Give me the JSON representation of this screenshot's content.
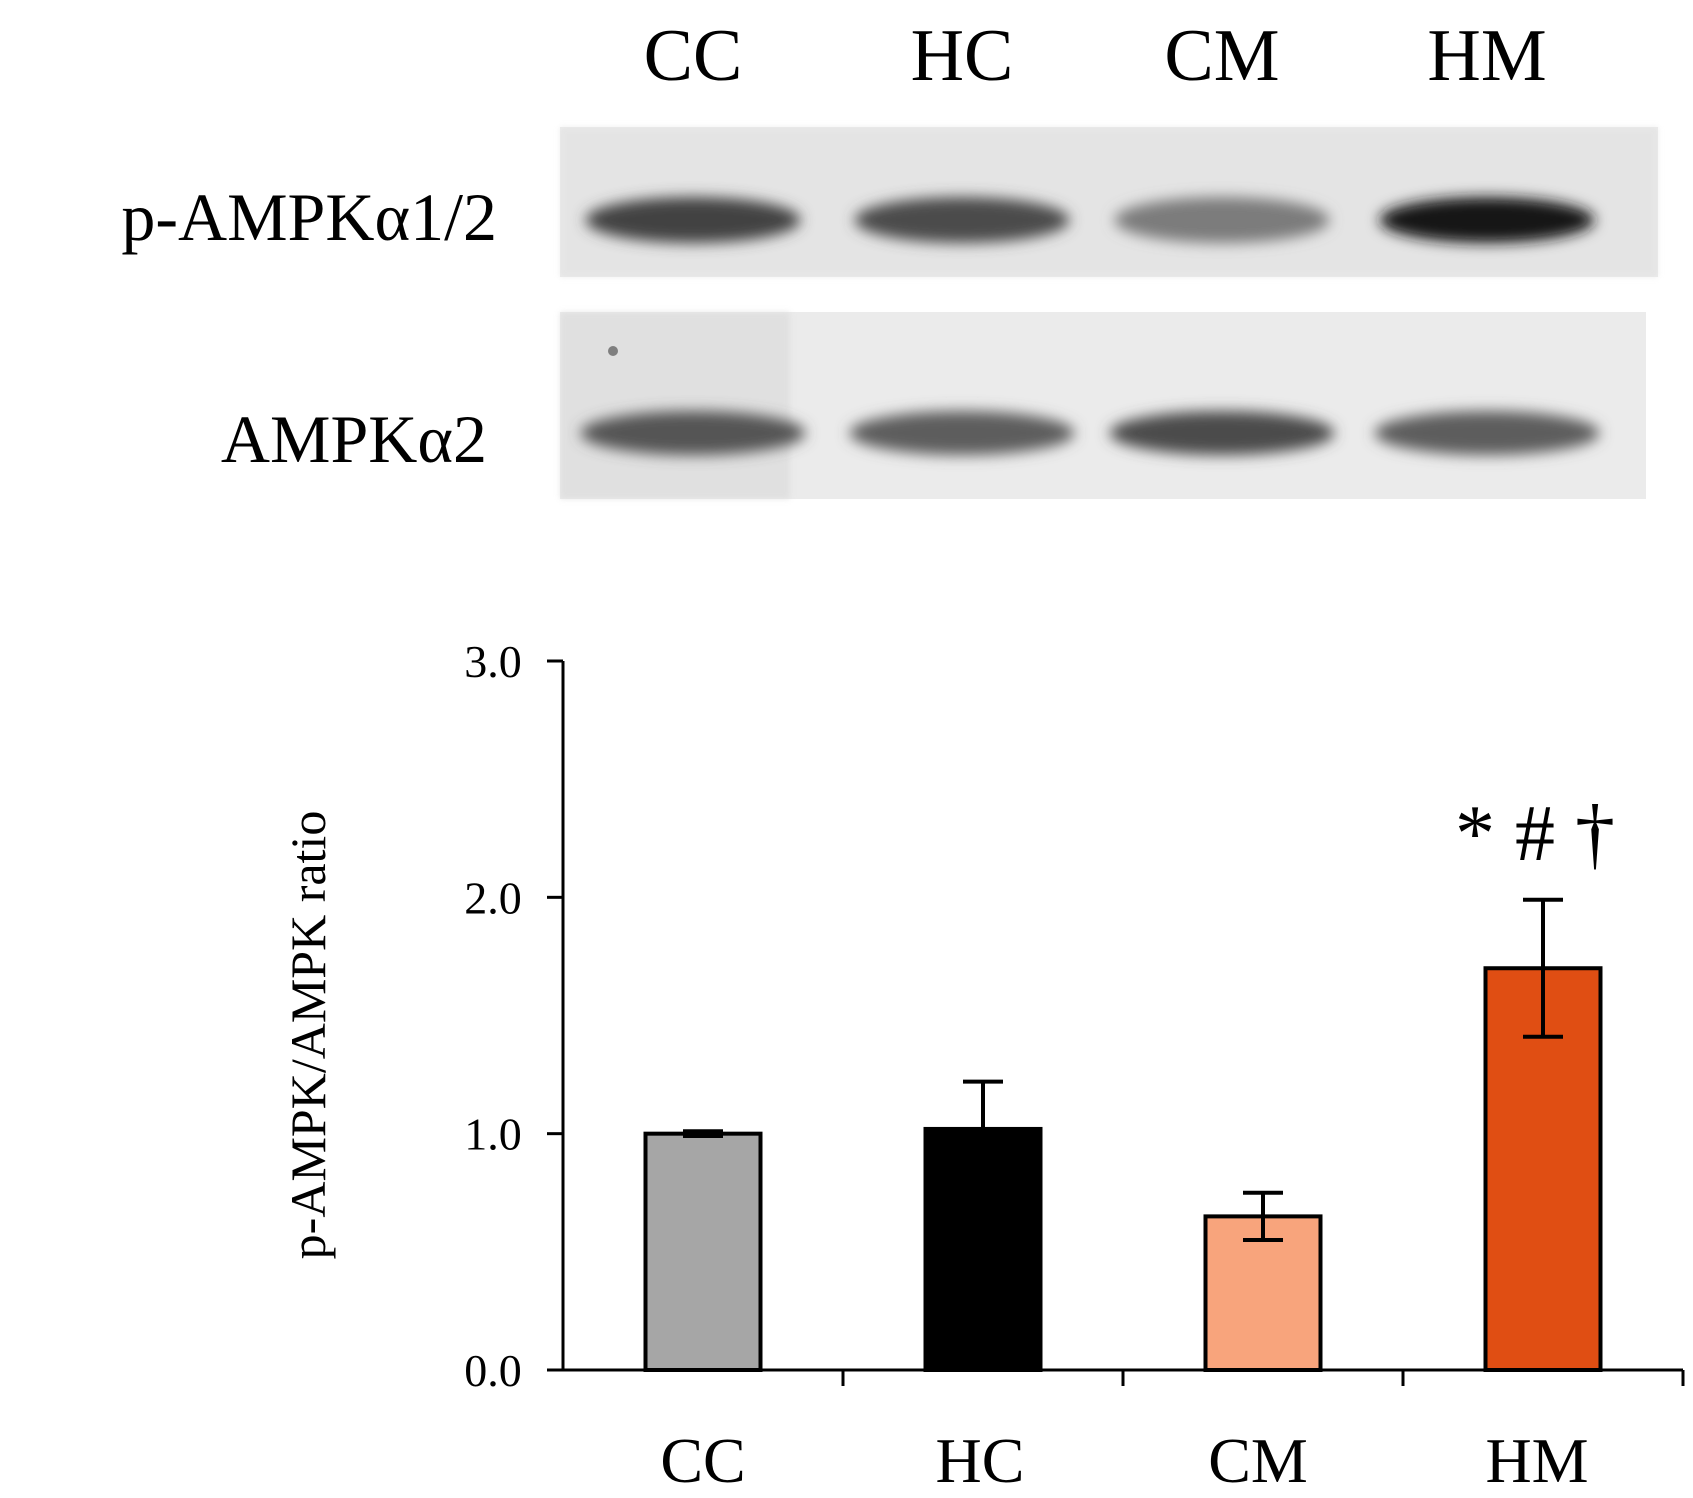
{
  "blot": {
    "lanes": [
      "CC",
      "HC",
      "CM",
      "HM"
    ],
    "rows": [
      {
        "label": "p-AMPKα1/2",
        "intensity": [
          0.78,
          0.74,
          0.52,
          0.98
        ]
      },
      {
        "label": "AMPKα2",
        "intensity": [
          0.7,
          0.66,
          0.74,
          0.66
        ]
      }
    ]
  },
  "chart_data": {
    "type": "bar",
    "categories": [
      "CC",
      "HC",
      "CM",
      "HM"
    ],
    "values": [
      1.0,
      1.02,
      0.65,
      1.7
    ],
    "errors": [
      0.01,
      0.2,
      0.1,
      0.29
    ],
    "colors": [
      "#a6a6a6",
      "#000000",
      "#f8a47c",
      "#e04e13"
    ],
    "ylabel": "p-AMPK/AMPK ratio",
    "ylim": [
      0,
      3
    ],
    "yticks": [
      0,
      1,
      2,
      3
    ],
    "ytick_labels": [
      "0.0",
      "1.0",
      "2.0",
      "3.0"
    ],
    "annotations": [
      {
        "category": "HM",
        "text": "* # †"
      }
    ]
  }
}
